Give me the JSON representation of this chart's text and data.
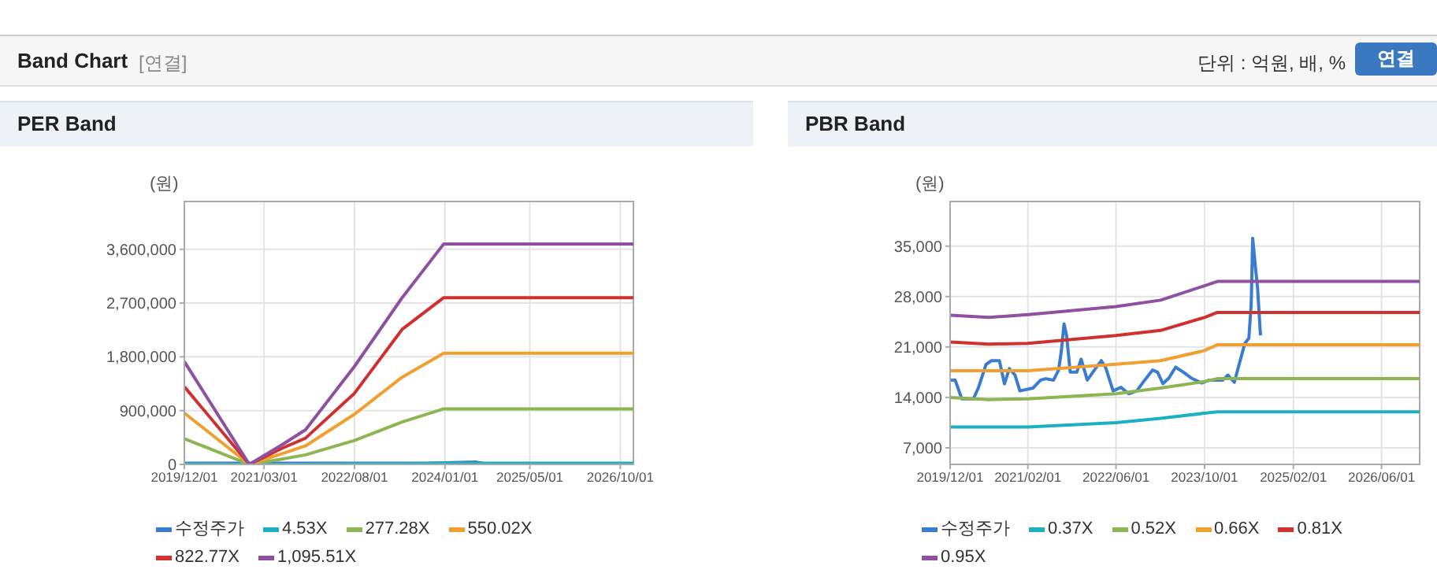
{
  "chart_data": [
    {
      "type": "line",
      "title": "PER Band",
      "ylabel": "(원)",
      "annotations": [
        "Band Chart",
        "[연결]",
        "단위 : 억원, 배, %",
        "연결"
      ],
      "x": [
        "2019-12-01",
        "2020-12-07",
        "2021-06-13",
        "2021-10-25",
        "2022-08-01",
        "2023-05-01",
        "2023-12-25",
        "2026-12-15"
      ],
      "series": [
        {
          "name": "수정주가",
          "color": "#3a7dd0",
          "x": [
            "2019-12-01",
            "2020-12-01",
            "2021-08-01",
            "2022-06-01",
            "2023-10-01",
            "2024-06-22",
            "2024-08-04"
          ],
          "values": [
            20000,
            20000,
            20000,
            20000,
            20000,
            40000,
            20000
          ]
        },
        {
          "name": "4.53X",
          "color": "#1cb0c0",
          "values": [
            10000,
            0,
            0,
            0,
            10000,
            10000,
            20000,
            20000
          ]
        },
        {
          "name": "277.28X",
          "color": "#8db653",
          "values": [
            430000,
            0,
            90000,
            160000,
            400000,
            710000,
            930000,
            930000
          ]
        },
        {
          "name": "550.02X",
          "color": "#f0a030",
          "values": [
            860000,
            0,
            180000,
            310000,
            840000,
            1460000,
            1860000,
            1860000
          ]
        },
        {
          "name": "822.77X",
          "color": "#d03030",
          "values": [
            1300000,
            0,
            270000,
            440000,
            1190000,
            2260000,
            2790000,
            2790000
          ]
        },
        {
          "name": "1,095.51X",
          "color": "#9050a0",
          "values": [
            1720000,
            0,
            330000,
            580000,
            1640000,
            2790000,
            3690000,
            3690000
          ]
        }
      ],
      "xlim": [
        "2019-12-01",
        "2026-12-15"
      ],
      "xticks": [
        {
          "value": "2019-12-01",
          "label": "2019/12/01"
        },
        {
          "value": "2021-03-01",
          "label": "2021/03/01"
        },
        {
          "value": "2022-08-01",
          "label": "2022/08/01"
        },
        {
          "value": "2024-01-01",
          "label": "2024/01/01"
        },
        {
          "value": "2025-05-01",
          "label": "2025/05/01"
        },
        {
          "value": "2026-10-01",
          "label": "2026/10/01"
        }
      ],
      "ylim": [
        0,
        4400000
      ],
      "yticks": [
        0,
        {
          "value": 900000,
          "label": "900,000"
        },
        {
          "value": 1800000,
          "label": "1,800,000"
        },
        {
          "value": 2700000,
          "label": "2,700,000"
        },
        {
          "value": 3600000,
          "label": "3,600,000"
        }
      ],
      "grid": true,
      "legend": "bottom",
      "marker": "none",
      "line_style": "solid"
    },
    {
      "type": "line",
      "title": "PBR Band",
      "ylabel": "(원)",
      "x": [
        "2019-12-01",
        "2020-07-01",
        "2021-02-01",
        "2022-06-01",
        "2023-02-01",
        "2023-10-01",
        "2023-12-10",
        "2026-12-28"
      ],
      "series": [
        {
          "name": "수정주가",
          "color": "#3a7dd0",
          "x": [
            "2019-12-01",
            "2019-12-29",
            "2020-02-03",
            "2020-04-07",
            "2020-05-04",
            "2020-06-16",
            "2020-07-16",
            "2020-08-28",
            "2020-09-25",
            "2020-10-22",
            "2020-11-22",
            "2020-12-19",
            "2021-03-01",
            "2021-04-12",
            "2021-05-10",
            "2021-06-22",
            "2021-07-20",
            "2021-08-04",
            "2021-08-19",
            "2021-09-02",
            "2021-09-22",
            "2021-10-28",
            "2021-11-21",
            "2021-12-25",
            "2022-02-02",
            "2022-03-12",
            "2022-04-04",
            "2022-05-16",
            "2022-06-28",
            "2022-08-10",
            "2022-09-23",
            "2022-11-06",
            "2022-12-19",
            "2023-01-16",
            "2023-02-14",
            "2023-03-19",
            "2023-04-25",
            "2023-06-07",
            "2023-07-19",
            "2023-09-16",
            "2023-10-28",
            "2024-01-10",
            "2024-02-07",
            "2024-03-13",
            "2024-04-12",
            "2024-05-10",
            "2024-06-01",
            "2024-06-14",
            "2024-06-22",
            "2024-07-07",
            "2024-07-19",
            "2024-08-04"
          ],
          "values": [
            16400,
            16400,
            13800,
            13800,
            15300,
            18600,
            19100,
            19100,
            15900,
            18000,
            17100,
            14900,
            15300,
            16400,
            16600,
            16400,
            17800,
            20400,
            24200,
            22600,
            17500,
            17500,
            19300,
            16400,
            17800,
            19100,
            18200,
            14900,
            15400,
            14500,
            14900,
            16400,
            17800,
            17500,
            15900,
            16700,
            18200,
            17500,
            16700,
            16000,
            16400,
            16400,
            17100,
            16100,
            18900,
            21500,
            22200,
            27000,
            36100,
            32100,
            29200,
            22600
          ]
        },
        {
          "name": "0.37X",
          "color": "#1cb0c0",
          "values": [
            9900,
            9900,
            9900,
            10500,
            11100,
            11800,
            12000,
            12000
          ]
        },
        {
          "name": "0.52X",
          "color": "#8db653",
          "values": [
            14000,
            13700,
            13800,
            14500,
            15300,
            16200,
            16600,
            16600
          ]
        },
        {
          "name": "0.66X",
          "color": "#f0a030",
          "values": [
            17700,
            17700,
            17700,
            18600,
            19100,
            20500,
            21300,
            21300
          ]
        },
        {
          "name": "0.81X",
          "color": "#d03030",
          "values": [
            21700,
            21400,
            21500,
            22600,
            23300,
            25100,
            25800,
            25800
          ]
        },
        {
          "name": "0.95X",
          "color": "#9050a0",
          "values": [
            25400,
            25100,
            25500,
            26600,
            27500,
            29500,
            30100,
            30100
          ]
        }
      ],
      "xlim": [
        "2019-12-01",
        "2026-12-28"
      ],
      "xticks": [
        {
          "value": "2019-12-01",
          "label": "2019/12/01"
        },
        {
          "value": "2021-02-01",
          "label": "2021/02/01"
        },
        {
          "value": "2022-06-01",
          "label": "2022/06/01"
        },
        {
          "value": "2023-10-01",
          "label": "2023/10/01"
        },
        {
          "value": "2025-02-01",
          "label": "2025/02/01"
        },
        {
          "value": "2026-06-01",
          "label": "2026/06/01"
        }
      ],
      "ylim": [
        4700,
        41200
      ],
      "yticks": [
        {
          "value": 7000,
          "label": "7,000"
        },
        {
          "value": 14000,
          "label": "14,000"
        },
        {
          "value": 21000,
          "label": "21,000"
        },
        {
          "value": 28000,
          "label": "28,000"
        },
        {
          "value": 35000,
          "label": "35,000"
        }
      ],
      "grid": true,
      "legend": "bottom",
      "marker": "none",
      "line_style": "solid"
    }
  ]
}
